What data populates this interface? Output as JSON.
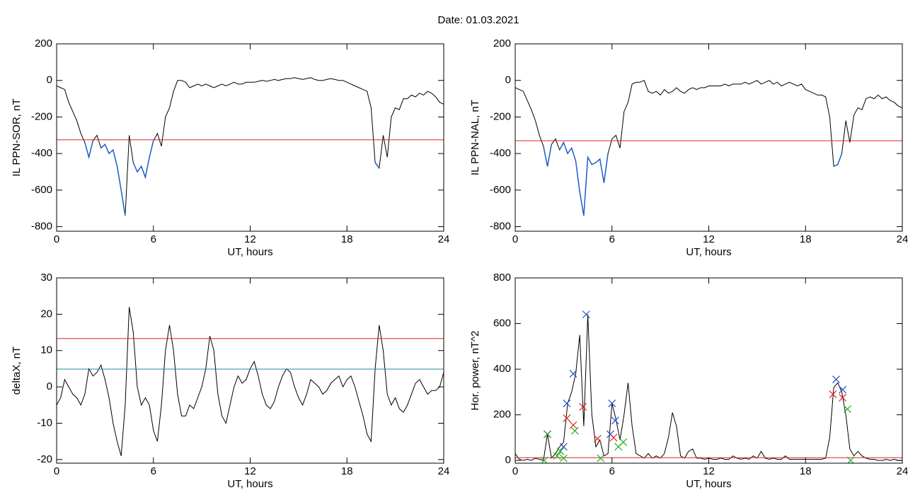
{
  "title": "Date:  01.03.2021",
  "chart_data": [
    {
      "type": "line",
      "ylabel": "IL PPN-SOR, nT",
      "xlabel": "UT, hours",
      "xlim": [
        0,
        24
      ],
      "xticks": [
        0,
        6,
        12,
        18,
        24
      ],
      "ylim": [
        -825,
        200
      ],
      "yticks": [
        -800,
        -600,
        -400,
        -200,
        0,
        200
      ],
      "x": [
        0,
        0.25,
        0.5,
        0.75,
        1,
        1.25,
        1.5,
        1.75,
        2,
        2.25,
        2.5,
        2.75,
        3,
        3.25,
        3.5,
        3.75,
        4,
        4.25,
        4.5,
        4.75,
        5,
        5.25,
        5.5,
        5.75,
        6,
        6.25,
        6.5,
        6.75,
        7,
        7.25,
        7.5,
        7.75,
        8,
        8.25,
        8.5,
        8.75,
        9,
        9.25,
        9.5,
        9.75,
        10,
        10.25,
        10.5,
        10.75,
        11,
        11.25,
        11.5,
        11.75,
        12,
        12.25,
        12.5,
        12.75,
        13,
        13.25,
        13.5,
        13.75,
        14,
        14.25,
        14.5,
        14.75,
        15,
        15.25,
        15.5,
        15.75,
        16,
        16.25,
        16.5,
        16.75,
        17,
        17.25,
        17.5,
        17.75,
        18,
        18.25,
        18.5,
        18.75,
        19,
        19.25,
        19.5,
        19.75,
        20,
        20.25,
        20.5,
        20.75,
        21,
        21.25,
        21.5,
        21.75,
        22,
        22.25,
        22.5,
        22.75,
        23,
        23.25,
        23.5,
        23.75,
        24
      ],
      "series": [
        {
          "color": "#000000",
          "values": [
            -30,
            -40,
            -50,
            -120,
            -170,
            -220,
            -290,
            -340,
            -420,
            -330,
            -300,
            -370,
            -350,
            -400,
            -380,
            -470,
            -600,
            -740,
            -300,
            -450,
            -500,
            -470,
            -530,
            -420,
            -330,
            -290,
            -360,
            -200,
            -150,
            -60,
            0,
            0,
            -10,
            -40,
            -30,
            -20,
            -30,
            -20,
            -30,
            -40,
            -30,
            -20,
            -30,
            -20,
            -10,
            -20,
            -20,
            -10,
            -10,
            -10,
            -5,
            0,
            -5,
            0,
            5,
            0,
            5,
            10,
            10,
            15,
            10,
            5,
            10,
            15,
            5,
            0,
            0,
            5,
            10,
            5,
            0,
            0,
            -10,
            -20,
            -30,
            -40,
            -50,
            -60,
            -150,
            -450,
            -480,
            -300,
            -420,
            -200,
            -150,
            -160,
            -100,
            -100,
            -80,
            -90,
            -70,
            -80,
            -60,
            -70,
            -90,
            -120,
            -130
          ]
        }
      ],
      "hlines": [
        {
          "value": -325,
          "color": "#e02020"
        }
      ],
      "below_color": "#1f5fc8"
    },
    {
      "type": "line",
      "ylabel": "IL PPN-NAL, nT",
      "xlabel": "UT, hours",
      "xlim": [
        0,
        24
      ],
      "xticks": [
        0,
        6,
        12,
        18,
        24
      ],
      "ylim": [
        -825,
        200
      ],
      "yticks": [
        -800,
        -600,
        -400,
        -200,
        0,
        200
      ],
      "x": [
        0,
        0.25,
        0.5,
        0.75,
        1,
        1.25,
        1.5,
        1.75,
        2,
        2.25,
        2.5,
        2.75,
        3,
        3.25,
        3.5,
        3.75,
        4,
        4.25,
        4.5,
        4.75,
        5,
        5.25,
        5.5,
        5.75,
        6,
        6.25,
        6.5,
        6.75,
        7,
        7.25,
        7.5,
        7.75,
        8,
        8.25,
        8.5,
        8.75,
        9,
        9.25,
        9.5,
        9.75,
        10,
        10.25,
        10.5,
        10.75,
        11,
        11.25,
        11.5,
        11.75,
        12,
        12.25,
        12.5,
        12.75,
        13,
        13.25,
        13.5,
        13.75,
        14,
        14.25,
        14.5,
        14.75,
        15,
        15.25,
        15.5,
        15.75,
        16,
        16.25,
        16.5,
        16.75,
        17,
        17.25,
        17.5,
        17.75,
        18,
        18.25,
        18.5,
        18.75,
        19,
        19.25,
        19.5,
        19.75,
        20,
        20.25,
        20.5,
        20.75,
        21,
        21.25,
        21.5,
        21.75,
        22,
        22.25,
        22.5,
        22.75,
        23,
        23.25,
        23.5,
        23.75,
        24
      ],
      "series": [
        {
          "color": "#000000",
          "values": [
            -40,
            -50,
            -60,
            -110,
            -160,
            -220,
            -300,
            -360,
            -470,
            -350,
            -320,
            -380,
            -340,
            -400,
            -370,
            -440,
            -610,
            -740,
            -420,
            -460,
            -450,
            -430,
            -560,
            -400,
            -320,
            -300,
            -370,
            -170,
            -120,
            -20,
            -10,
            -10,
            0,
            -60,
            -70,
            -60,
            -80,
            -50,
            -70,
            -60,
            -40,
            -60,
            -70,
            -50,
            -40,
            -50,
            -40,
            -40,
            -30,
            -30,
            -30,
            -30,
            -20,
            -30,
            -20,
            -20,
            -20,
            -10,
            -20,
            -10,
            0,
            -20,
            -10,
            0,
            -20,
            -10,
            -30,
            -20,
            -10,
            -20,
            -30,
            -20,
            -50,
            -60,
            -70,
            -80,
            -80,
            -90,
            -200,
            -470,
            -460,
            -400,
            -220,
            -340,
            -190,
            -150,
            -160,
            -100,
            -90,
            -100,
            -80,
            -100,
            -90,
            -110,
            -120,
            -140,
            -150
          ]
        }
      ],
      "hlines": [
        {
          "value": -330,
          "color": "#e02020"
        }
      ],
      "below_color": "#1f5fc8"
    },
    {
      "type": "line",
      "ylabel": "deltaX, nT",
      "xlabel": "UT, hours",
      "xlim": [
        0,
        24
      ],
      "xticks": [
        0,
        6,
        12,
        18,
        24
      ],
      "ylim": [
        -21,
        30
      ],
      "yticks": [
        -20,
        -10,
        0,
        10,
        20,
        30
      ],
      "x": [
        0,
        0.25,
        0.5,
        0.75,
        1,
        1.25,
        1.5,
        1.75,
        2,
        2.25,
        2.5,
        2.75,
        3,
        3.25,
        3.5,
        3.75,
        4,
        4.25,
        4.5,
        4.75,
        5,
        5.25,
        5.5,
        5.75,
        6,
        6.25,
        6.5,
        6.75,
        7,
        7.25,
        7.5,
        7.75,
        8,
        8.25,
        8.5,
        8.75,
        9,
        9.25,
        9.5,
        9.75,
        10,
        10.25,
        10.5,
        10.75,
        11,
        11.25,
        11.5,
        11.75,
        12,
        12.25,
        12.5,
        12.75,
        13,
        13.25,
        13.5,
        13.75,
        14,
        14.25,
        14.5,
        14.75,
        15,
        15.25,
        15.5,
        15.75,
        16,
        16.25,
        16.5,
        16.75,
        17,
        17.25,
        17.5,
        17.75,
        18,
        18.25,
        18.5,
        18.75,
        19,
        19.25,
        19.5,
        19.75,
        20,
        20.25,
        20.5,
        20.75,
        21,
        21.25,
        21.5,
        21.75,
        22,
        22.25,
        22.5,
        22.75,
        23,
        23.25,
        23.5,
        23.75,
        24
      ],
      "series": [
        {
          "color": "#000000",
          "values": [
            -5,
            -3,
            2,
            0,
            -2,
            -3,
            -5,
            -2,
            5,
            3,
            4,
            6,
            2,
            -3,
            -10,
            -15,
            -19,
            -5,
            22,
            15,
            0,
            -5,
            -3,
            -5,
            -12,
            -15,
            -5,
            10,
            17,
            10,
            -2,
            -8,
            -8,
            -5,
            -6,
            -3,
            0,
            5,
            14,
            10,
            -2,
            -8,
            -10,
            -5,
            0,
            3,
            1,
            2,
            5,
            7,
            3,
            -2,
            -5,
            -6,
            -4,
            0,
            3,
            5,
            4,
            0,
            -3,
            -5,
            -2,
            2,
            1,
            0,
            -2,
            -1,
            1,
            2,
            3,
            0,
            2,
            3,
            0,
            -4,
            -8,
            -13,
            -15,
            5,
            17,
            10,
            -2,
            -5,
            -3,
            -6,
            -7,
            -5,
            -2,
            1,
            2,
            0,
            -2,
            -1,
            -1,
            0,
            4
          ]
        }
      ],
      "hlines": [
        {
          "value": 13.3,
          "color": "#e02020"
        },
        {
          "value": 4.9,
          "color": "#1a8a9a"
        }
      ]
    },
    {
      "type": "line",
      "ylabel": "Hor. power, nT^2",
      "xlabel": "UT, hours",
      "xlim": [
        0,
        24
      ],
      "xticks": [
        0,
        6,
        12,
        18,
        24
      ],
      "ylim": [
        -12,
        800
      ],
      "yticks": [
        0,
        200,
        400,
        600,
        800
      ],
      "x": [
        0,
        0.25,
        0.5,
        0.75,
        1,
        1.25,
        1.5,
        1.75,
        2,
        2.25,
        2.5,
        2.75,
        3,
        3.25,
        3.5,
        3.75,
        4,
        4.25,
        4.5,
        4.75,
        5,
        5.25,
        5.5,
        5.75,
        6,
        6.25,
        6.5,
        6.75,
        7,
        7.25,
        7.5,
        7.75,
        8,
        8.25,
        8.5,
        8.75,
        9,
        9.25,
        9.5,
        9.75,
        10,
        10.25,
        10.5,
        10.75,
        11,
        11.25,
        11.5,
        11.75,
        12,
        12.25,
        12.5,
        12.75,
        13,
        13.25,
        13.5,
        13.75,
        14,
        14.25,
        14.5,
        14.75,
        15,
        15.25,
        15.5,
        15.75,
        16,
        16.25,
        16.5,
        16.75,
        17,
        17.25,
        17.5,
        17.75,
        18,
        18.25,
        18.5,
        18.75,
        19,
        19.25,
        19.5,
        19.75,
        20,
        20.25,
        20.5,
        20.75,
        21,
        21.25,
        21.5,
        21.75,
        22,
        22.25,
        22.5,
        22.75,
        23,
        23.25,
        23.5,
        23.75,
        24
      ],
      "series": [
        {
          "color": "#000000",
          "values": [
            30,
            5,
            0,
            5,
            0,
            10,
            5,
            0,
            115,
            10,
            30,
            60,
            80,
            250,
            300,
            380,
            550,
            150,
            640,
            200,
            60,
            90,
            20,
            30,
            250,
            180,
            90,
            200,
            340,
            150,
            30,
            20,
            10,
            30,
            10,
            20,
            10,
            30,
            100,
            210,
            150,
            20,
            10,
            40,
            50,
            10,
            10,
            5,
            10,
            5,
            5,
            10,
            5,
            5,
            20,
            10,
            5,
            10,
            5,
            20,
            10,
            40,
            10,
            5,
            10,
            5,
            5,
            20,
            5,
            5,
            5,
            5,
            5,
            5,
            5,
            5,
            5,
            10,
            100,
            320,
            340,
            300,
            200,
            50,
            20,
            40,
            20,
            10,
            5,
            5,
            0,
            0,
            5,
            0,
            5,
            0,
            0
          ]
        }
      ],
      "hlines": [
        {
          "value": 12,
          "color": "#e02020"
        }
      ],
      "markers": [
        {
          "color": "#2050d0",
          "x": [
            2.0,
            3.0,
            3.2,
            3.6,
            4.4,
            5.9,
            6.0,
            6.2,
            19.9,
            20.3
          ],
          "y": [
            115,
            60,
            250,
            380,
            640,
            115,
            250,
            175,
            355,
            310
          ]
        },
        {
          "color": "#e02020",
          "x": [
            2.0,
            3.2,
            3.6,
            4.2,
            5.1,
            6.1,
            19.7,
            20.3
          ],
          "y": [
            115,
            185,
            155,
            235,
            95,
            100,
            290,
            275
          ]
        },
        {
          "color": "#20b020",
          "x": [
            1.8,
            2.0,
            2.6,
            2.8,
            3.0,
            3.7,
            5.3,
            6.4,
            6.7,
            20.6,
            20.8
          ],
          "y": [
            0,
            115,
            20,
            40,
            10,
            130,
            10,
            60,
            80,
            225,
            0
          ]
        }
      ]
    }
  ]
}
